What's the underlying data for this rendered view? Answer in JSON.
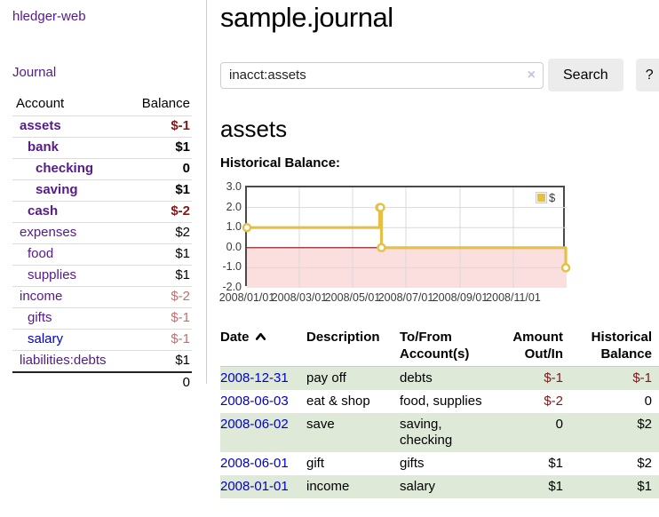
{
  "app": {
    "title": "hledger-web"
  },
  "sidebar": {
    "journal_link": "Journal",
    "accounts_table": {
      "headers": [
        "Account",
        "Balance"
      ],
      "rows": [
        {
          "account": "assets",
          "balance": "$-1",
          "depth": 0,
          "bold": true
        },
        {
          "account": "bank",
          "balance": "$1",
          "depth": 1,
          "bold": true
        },
        {
          "account": "checking",
          "balance": "0",
          "depth": 2,
          "bold": true
        },
        {
          "account": "saving",
          "balance": "$1",
          "depth": 2,
          "bold": true
        },
        {
          "account": "cash",
          "balance": "$-2",
          "depth": 1,
          "bold": true
        },
        {
          "account": "expenses",
          "balance": "$2",
          "depth": 0,
          "bold": false
        },
        {
          "account": "food",
          "balance": "$1",
          "depth": 1,
          "bold": false
        },
        {
          "account": "supplies",
          "balance": "$1",
          "depth": 1,
          "bold": false
        },
        {
          "account": "income",
          "balance": "$-2",
          "depth": 0,
          "bold": false
        },
        {
          "account": "gifts",
          "balance": "$-1",
          "depth": 1,
          "bold": false
        },
        {
          "account": "salary",
          "balance": "$-1",
          "depth": 1,
          "bold": false,
          "unvisited": true
        },
        {
          "account": "liabilities:debts",
          "balance": "$1",
          "depth": 0,
          "bold": false
        }
      ],
      "total": "0"
    }
  },
  "header": {
    "title": "sample.journal"
  },
  "search": {
    "value": "inacct:assets",
    "clear_icon": "×",
    "button": "Search",
    "help_button": "?"
  },
  "account_page": {
    "title": "assets",
    "chart_label": "Historical Balance:"
  },
  "chart_data": {
    "type": "line",
    "step": true,
    "title": "Historical Balance",
    "series": [
      {
        "name": "$",
        "color": "#e6c044",
        "points": [
          [
            "2008-01-01",
            1
          ],
          [
            "2008-06-01",
            2
          ],
          [
            "2008-06-02",
            2
          ],
          [
            "2008-06-03",
            0
          ],
          [
            "2008-12-31",
            -1
          ]
        ]
      }
    ],
    "x_ticks": [
      "2008/01/01",
      "2008/03/01",
      "2008/05/01",
      "2008/07/01",
      "2008/09/01",
      "2008/11/01"
    ],
    "y_ticks": [
      "3.0",
      "2.0",
      "1.0",
      "0.0",
      "-1.0",
      "-2.0"
    ],
    "ylim": [
      -2,
      3
    ],
    "xlim": [
      "2008-01-01",
      "2009-01-01"
    ],
    "grid": true,
    "grid_color": "#d9d9d9",
    "negative_region_color": "#fbdede",
    "zero_line_color": "#8b1414",
    "legend_position": "top-right"
  },
  "register": {
    "headers": {
      "date": "Date",
      "description": "Description",
      "accounts": "To/From Account(s)",
      "amount": "Amount Out/In",
      "balance": "Historical Balance"
    },
    "sort_icon": "chevron-up",
    "rows": [
      {
        "date": "2008-12-31",
        "description": "pay off",
        "accounts": "debts",
        "amount": "$-1",
        "balance": "$-1"
      },
      {
        "date": "2008-06-03",
        "description": "eat & shop",
        "accounts": "food, supplies",
        "amount": "$-2",
        "balance": "0"
      },
      {
        "date": "2008-06-02",
        "description": "save",
        "accounts": "saving, checking",
        "amount": "0",
        "balance": "$2"
      },
      {
        "date": "2008-06-01",
        "description": "gift",
        "accounts": "gifts",
        "amount": "$1",
        "balance": "$2"
      },
      {
        "date": "2008-01-01",
        "description": "income",
        "accounts": "salary",
        "amount": "$1",
        "balance": "$1"
      }
    ]
  },
  "colors": {
    "purple": "#551a8b",
    "blue": "#0000cc",
    "neg_strong": "#811717",
    "neg_soft": "#c56e6e",
    "green": "#dee9d8",
    "btn_gray": "#ececec"
  }
}
